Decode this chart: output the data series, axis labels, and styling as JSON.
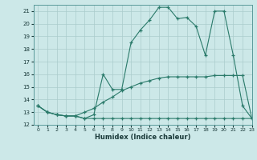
{
  "xlabel": "Humidex (Indice chaleur)",
  "background_color": "#cce8e8",
  "grid_color": "#aacccc",
  "line_color": "#2a7a6a",
  "xlim": [
    -0.5,
    23
  ],
  "ylim": [
    12,
    21.5
  ],
  "xticks": [
    0,
    1,
    2,
    3,
    4,
    5,
    6,
    7,
    8,
    9,
    10,
    11,
    12,
    13,
    14,
    15,
    16,
    17,
    18,
    19,
    20,
    21,
    22,
    23
  ],
  "yticks": [
    12,
    13,
    14,
    15,
    16,
    17,
    18,
    19,
    20,
    21
  ],
  "line1_x": [
    0,
    1,
    2,
    3,
    4,
    5,
    6,
    7,
    8,
    9,
    10,
    11,
    12,
    13,
    14,
    15,
    16,
    17,
    18,
    19,
    20,
    21,
    22,
    23
  ],
  "line1_y": [
    13.5,
    13.0,
    12.8,
    12.7,
    12.7,
    12.5,
    12.5,
    12.5,
    12.5,
    12.5,
    12.5,
    12.5,
    12.5,
    12.5,
    12.5,
    12.5,
    12.5,
    12.5,
    12.5,
    12.5,
    12.5,
    12.5,
    12.5,
    12.5
  ],
  "line2_x": [
    0,
    1,
    2,
    3,
    4,
    5,
    6,
    7,
    8,
    9,
    10,
    11,
    12,
    13,
    14,
    15,
    16,
    17,
    18,
    19,
    20,
    21,
    22,
    23
  ],
  "line2_y": [
    13.5,
    13.0,
    12.8,
    12.7,
    12.7,
    13.0,
    13.3,
    13.8,
    14.2,
    14.7,
    15.0,
    15.3,
    15.5,
    15.7,
    15.8,
    15.8,
    15.8,
    15.8,
    15.8,
    15.9,
    15.9,
    15.9,
    15.9,
    12.5
  ],
  "line3_x": [
    0,
    1,
    2,
    3,
    4,
    5,
    6,
    7,
    8,
    9,
    10,
    11,
    12,
    13,
    14,
    15,
    16,
    17,
    18,
    19,
    20,
    21,
    22,
    23
  ],
  "line3_y": [
    13.5,
    13.0,
    12.8,
    12.7,
    12.7,
    12.5,
    12.8,
    16.0,
    14.8,
    14.8,
    18.5,
    19.5,
    20.3,
    21.3,
    21.3,
    20.4,
    20.5,
    19.8,
    17.5,
    21.0,
    21.0,
    17.5,
    13.5,
    12.5
  ]
}
